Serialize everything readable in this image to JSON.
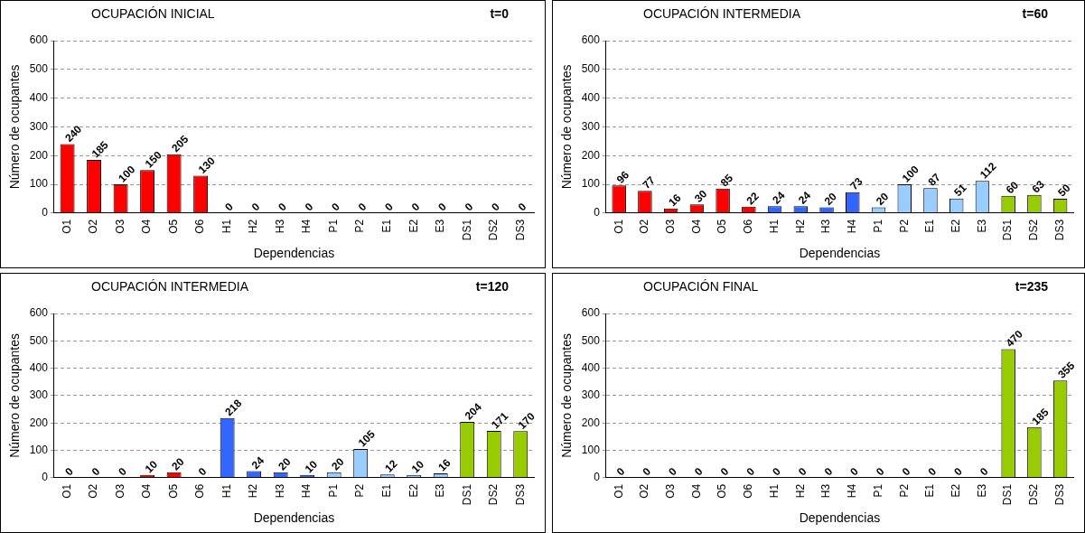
{
  "chart_data": [
    {
      "type": "bar",
      "title": "OCUPACIÓN INICIAL",
      "subtitle": "t=0",
      "xlabel": "Dependencias",
      "ylabel": "Número de ocupantes",
      "categories": [
        "O1",
        "O2",
        "O3",
        "O4",
        "O5",
        "O6",
        "H1",
        "H2",
        "H3",
        "H4",
        "P1",
        "P2",
        "E1",
        "E2",
        "E3",
        "DS1",
        "DS2",
        "DS3"
      ],
      "values": [
        240,
        185,
        100,
        150,
        205,
        130,
        0,
        0,
        0,
        0,
        0,
        0,
        0,
        0,
        0,
        0,
        0,
        0
      ],
      "colors": [
        "#ff0000",
        "#ff0000",
        "#ff0000",
        "#ff0000",
        "#ff0000",
        "#ff0000",
        "#3366ff",
        "#3366ff",
        "#3366ff",
        "#3366ff",
        "#99ccff",
        "#99ccff",
        "#99ccff",
        "#99ccff",
        "#99ccff",
        "#99cc00",
        "#99cc00",
        "#99cc00"
      ],
      "ylim": [
        0,
        600
      ],
      "yticks": [
        0,
        100,
        200,
        300,
        400,
        500,
        600
      ],
      "grid": "y",
      "data_labels": true
    },
    {
      "type": "bar",
      "title": "OCUPACIÓN INTERMEDIA",
      "subtitle": "t=60",
      "xlabel": "Dependencias",
      "ylabel": "Número de ocupantes",
      "categories": [
        "O1",
        "O2",
        "O3",
        "O4",
        "O5",
        "O6",
        "H1",
        "H2",
        "H3",
        "H4",
        "P1",
        "P2",
        "E1",
        "E2",
        "E3",
        "DS1",
        "DS2",
        "DS3"
      ],
      "values": [
        96,
        77,
        16,
        30,
        85,
        22,
        24,
        24,
        20,
        73,
        20,
        100,
        87,
        51,
        112,
        60,
        63,
        50
      ],
      "colors": [
        "#ff0000",
        "#ff0000",
        "#ff0000",
        "#ff0000",
        "#ff0000",
        "#ff0000",
        "#3366ff",
        "#3366ff",
        "#3366ff",
        "#3366ff",
        "#99ccff",
        "#99ccff",
        "#99ccff",
        "#99ccff",
        "#99ccff",
        "#99cc00",
        "#99cc00",
        "#99cc00"
      ],
      "ylim": [
        0,
        600
      ],
      "yticks": [
        0,
        100,
        200,
        300,
        400,
        500,
        600
      ],
      "grid": "y",
      "data_labels": true
    },
    {
      "type": "bar",
      "title": "OCUPACIÓN INTERMEDIA",
      "subtitle": "t=120",
      "xlabel": "Dependencias",
      "ylabel": "Número de ocupantes",
      "categories": [
        "O1",
        "O2",
        "O3",
        "O4",
        "O5",
        "O6",
        "H1",
        "H2",
        "H3",
        "H4",
        "P1",
        "P2",
        "E1",
        "E2",
        "E3",
        "DS1",
        "DS2",
        "DS3"
      ],
      "values": [
        0,
        0,
        0,
        10,
        20,
        0,
        218,
        24,
        20,
        10,
        20,
        105,
        12,
        10,
        16,
        204,
        171,
        170
      ],
      "colors": [
        "#ff0000",
        "#ff0000",
        "#ff0000",
        "#ff0000",
        "#ff0000",
        "#ff0000",
        "#3366ff",
        "#3366ff",
        "#3366ff",
        "#3366ff",
        "#99ccff",
        "#99ccff",
        "#99ccff",
        "#99ccff",
        "#99ccff",
        "#99cc00",
        "#99cc00",
        "#99cc00"
      ],
      "ylim": [
        0,
        600
      ],
      "yticks": [
        0,
        100,
        200,
        300,
        400,
        500,
        600
      ],
      "grid": "y",
      "data_labels": true
    },
    {
      "type": "bar",
      "title": "OCUPACIÓN FINAL",
      "subtitle": "t=235",
      "xlabel": "Dependencias",
      "ylabel": "Número de ocupantes",
      "categories": [
        "O1",
        "O2",
        "O3",
        "O4",
        "O5",
        "O6",
        "H1",
        "H2",
        "H3",
        "H4",
        "P1",
        "P2",
        "E1",
        "E2",
        "E3",
        "DS1",
        "DS2",
        "DS3"
      ],
      "values": [
        0,
        0,
        0,
        0,
        0,
        0,
        0,
        0,
        0,
        0,
        0,
        0,
        0,
        0,
        0,
        470,
        185,
        355
      ],
      "colors": [
        "#ff0000",
        "#ff0000",
        "#ff0000",
        "#ff0000",
        "#ff0000",
        "#ff0000",
        "#3366ff",
        "#3366ff",
        "#3366ff",
        "#3366ff",
        "#99ccff",
        "#99ccff",
        "#99ccff",
        "#99ccff",
        "#99ccff",
        "#99cc00",
        "#99cc00",
        "#99cc00"
      ],
      "ylim": [
        0,
        600
      ],
      "yticks": [
        0,
        100,
        200,
        300,
        400,
        500,
        600
      ],
      "grid": "y",
      "data_labels": true
    }
  ]
}
